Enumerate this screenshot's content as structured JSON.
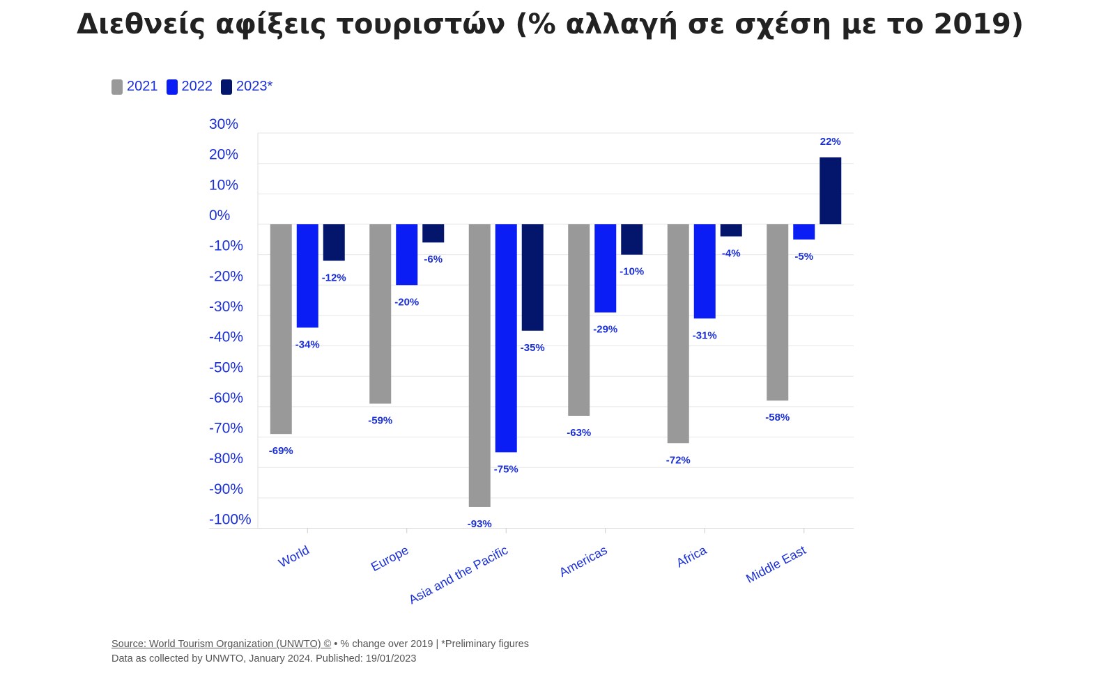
{
  "title": "Διεθνείς αφίξεις τουριστών (% αλλαγή σε σχέση με το 2019)",
  "legend": {
    "items": [
      {
        "label": "2021",
        "color": "#999999"
      },
      {
        "label": "2022",
        "color": "#0a1df5"
      },
      {
        "label": "2023*",
        "color": "#03166b"
      }
    ]
  },
  "footer": {
    "source": "Source: World Tourism Organization (UNWTO) ©",
    "note": " • % change over 2019 | *Preliminary figures",
    "line2": "Data as collected by UNWTO, January 2024. Published: 19/01/2023"
  },
  "chart_data": {
    "type": "bar",
    "categories": [
      "World",
      "Europe",
      "Asia and the Pacific",
      "Americas",
      "Africa",
      "Middle East"
    ],
    "series": [
      {
        "name": "2021",
        "values": [
          -69,
          -59,
          -93,
          -63,
          -72,
          -58
        ],
        "color": "#999999"
      },
      {
        "name": "2022",
        "values": [
          -34,
          -20,
          -75,
          -29,
          -31,
          -5
        ],
        "color": "#0a1df5"
      },
      {
        "name": "2023*",
        "values": [
          -12,
          -6,
          -35,
          -10,
          -4,
          22
        ],
        "color": "#03166b"
      }
    ],
    "data_labels": [
      [
        "-69%",
        "-59%",
        "-93%",
        "-63%",
        "-72%",
        "-58%"
      ],
      [
        "-34%",
        "-20%",
        "-75%",
        "-29%",
        "-31%",
        "-5%"
      ],
      [
        "-12%",
        "-6%",
        "-35%",
        "-10%",
        "-4%",
        "22%"
      ]
    ],
    "y_ticks": [
      30,
      20,
      10,
      0,
      -10,
      -20,
      -30,
      -40,
      -50,
      -60,
      -70,
      -80,
      -90,
      -100
    ],
    "y_tick_labels": [
      "30%",
      "20%",
      "10%",
      "0%",
      "-10%",
      "-20%",
      "-30%",
      "-40%",
      "-50%",
      "-60%",
      "-70%",
      "-80%",
      "-90%",
      "-100%"
    ],
    "ylim": [
      -100,
      30
    ],
    "grid": true,
    "legend_position": "top-left",
    "xlabel": "",
    "ylabel": ""
  }
}
